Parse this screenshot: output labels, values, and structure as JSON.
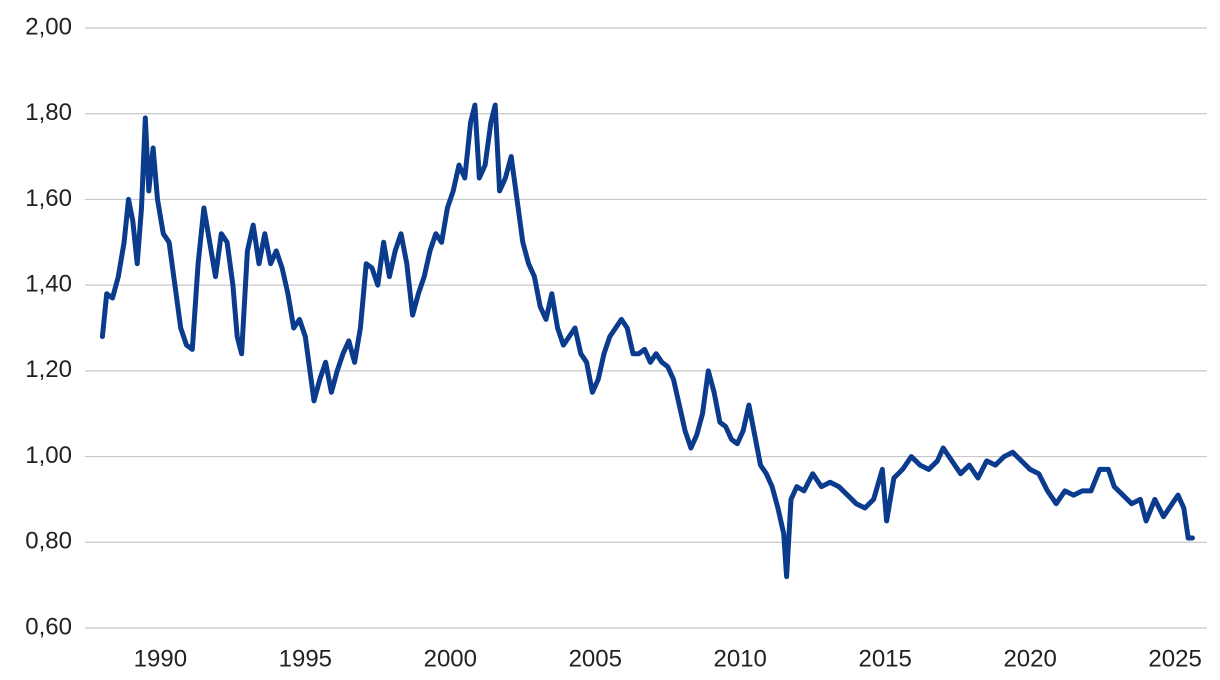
{
  "chart_data": {
    "type": "line",
    "x": [
      1988.0,
      1988.15,
      1988.35,
      1988.55,
      1988.75,
      1988.9,
      1989.05,
      1989.2,
      1989.35,
      1989.48,
      1989.6,
      1989.75,
      1989.9,
      1990.1,
      1990.3,
      1990.5,
      1990.7,
      1990.9,
      1991.1,
      1991.3,
      1991.5,
      1991.7,
      1991.9,
      1992.1,
      1992.3,
      1992.5,
      1992.65,
      1992.8,
      1993.0,
      1993.2,
      1993.4,
      1993.6,
      1993.8,
      1994.0,
      1994.2,
      1994.4,
      1994.6,
      1994.8,
      1995.0,
      1995.2,
      1995.3,
      1995.5,
      1995.7,
      1995.9,
      1996.1,
      1996.3,
      1996.5,
      1996.7,
      1996.9,
      1997.1,
      1997.3,
      1997.5,
      1997.7,
      1997.9,
      1998.1,
      1998.3,
      1998.5,
      1998.7,
      1998.9,
      1999.1,
      1999.3,
      1999.5,
      1999.7,
      1999.9,
      2000.1,
      2000.3,
      2000.5,
      2000.7,
      2000.85,
      2001.0,
      2001.2,
      2001.4,
      2001.55,
      2001.7,
      2001.9,
      2002.1,
      2002.3,
      2002.5,
      2002.7,
      2002.9,
      2003.1,
      2003.3,
      2003.5,
      2003.7,
      2003.9,
      2004.1,
      2004.3,
      2004.5,
      2004.7,
      2004.9,
      2005.1,
      2005.3,
      2005.5,
      2005.7,
      2005.9,
      2006.1,
      2006.3,
      2006.5,
      2006.7,
      2006.9,
      2007.1,
      2007.3,
      2007.5,
      2007.7,
      2007.9,
      2008.1,
      2008.3,
      2008.5,
      2008.7,
      2008.9,
      2009.1,
      2009.3,
      2009.5,
      2009.7,
      2009.9,
      2010.1,
      2010.3,
      2010.5,
      2010.7,
      2010.9,
      2011.1,
      2011.3,
      2011.5,
      2011.6,
      2011.75,
      2011.95,
      2012.2,
      2012.5,
      2012.8,
      2013.1,
      2013.4,
      2013.7,
      2014.0,
      2014.3,
      2014.6,
      2014.9,
      2015.05,
      2015.3,
      2015.6,
      2015.9,
      2016.2,
      2016.5,
      2016.8,
      2017.0,
      2017.3,
      2017.6,
      2017.9,
      2018.2,
      2018.5,
      2018.8,
      2019.1,
      2019.4,
      2019.7,
      2020.0,
      2020.3,
      2020.6,
      2020.9,
      2021.2,
      2021.5,
      2021.8,
      2022.1,
      2022.4,
      2022.7,
      2022.9,
      2023.2,
      2023.5,
      2023.8,
      2024.0,
      2024.3,
      2024.6,
      2024.9,
      2025.1,
      2025.3,
      2025.45,
      2025.6
    ],
    "series": [
      {
        "color": "#0b3b8c",
        "values": [
          1.28,
          1.38,
          1.37,
          1.42,
          1.5,
          1.6,
          1.55,
          1.45,
          1.58,
          1.79,
          1.62,
          1.72,
          1.6,
          1.52,
          1.5,
          1.4,
          1.3,
          1.26,
          1.25,
          1.45,
          1.58,
          1.5,
          1.42,
          1.52,
          1.5,
          1.4,
          1.28,
          1.24,
          1.48,
          1.54,
          1.45,
          1.52,
          1.45,
          1.48,
          1.44,
          1.38,
          1.3,
          1.32,
          1.28,
          1.18,
          1.13,
          1.18,
          1.22,
          1.15,
          1.2,
          1.24,
          1.27,
          1.22,
          1.3,
          1.45,
          1.44,
          1.4,
          1.5,
          1.42,
          1.48,
          1.52,
          1.45,
          1.33,
          1.38,
          1.42,
          1.48,
          1.52,
          1.5,
          1.58,
          1.62,
          1.68,
          1.65,
          1.78,
          1.82,
          1.65,
          1.68,
          1.78,
          1.82,
          1.62,
          1.65,
          1.7,
          1.6,
          1.5,
          1.45,
          1.42,
          1.35,
          1.32,
          1.38,
          1.3,
          1.26,
          1.28,
          1.3,
          1.24,
          1.22,
          1.15,
          1.18,
          1.24,
          1.28,
          1.3,
          1.32,
          1.3,
          1.24,
          1.24,
          1.25,
          1.22,
          1.24,
          1.22,
          1.21,
          1.18,
          1.12,
          1.06,
          1.02,
          1.05,
          1.1,
          1.2,
          1.15,
          1.08,
          1.07,
          1.04,
          1.03,
          1.06,
          1.12,
          1.05,
          0.98,
          0.96,
          0.93,
          0.88,
          0.82,
          0.72,
          0.9,
          0.93,
          0.92,
          0.96,
          0.93,
          0.94,
          0.93,
          0.91,
          0.89,
          0.88,
          0.9,
          0.97,
          0.85,
          0.95,
          0.97,
          1.0,
          0.98,
          0.97,
          0.99,
          1.02,
          0.99,
          0.96,
          0.98,
          0.95,
          0.99,
          0.98,
          1.0,
          1.01,
          0.99,
          0.97,
          0.96,
          0.92,
          0.89,
          0.92,
          0.91,
          0.92,
          0.92,
          0.97,
          0.97,
          0.93,
          0.91,
          0.89,
          0.9,
          0.85,
          0.9,
          0.86,
          0.89,
          0.91,
          0.88,
          0.81,
          0.81
        ]
      }
    ],
    "xlim": [
      1987.4,
      2026.1
    ],
    "xticks": [
      1990,
      1995,
      2000,
      2005,
      2010,
      2015,
      2020,
      2025
    ],
    "ylim": [
      0.6,
      2.0
    ],
    "yticks": [
      {
        "value": 0.6,
        "label": "0,60"
      },
      {
        "value": 0.8,
        "label": "0,80"
      },
      {
        "value": 1.0,
        "label": "1,00"
      },
      {
        "value": 1.2,
        "label": "1,20"
      },
      {
        "value": 1.4,
        "label": "1,40"
      },
      {
        "value": 1.6,
        "label": "1,60"
      },
      {
        "value": 1.8,
        "label": "1,80"
      },
      {
        "value": 2.0,
        "label": "2,00"
      }
    ],
    "grid": true
  }
}
